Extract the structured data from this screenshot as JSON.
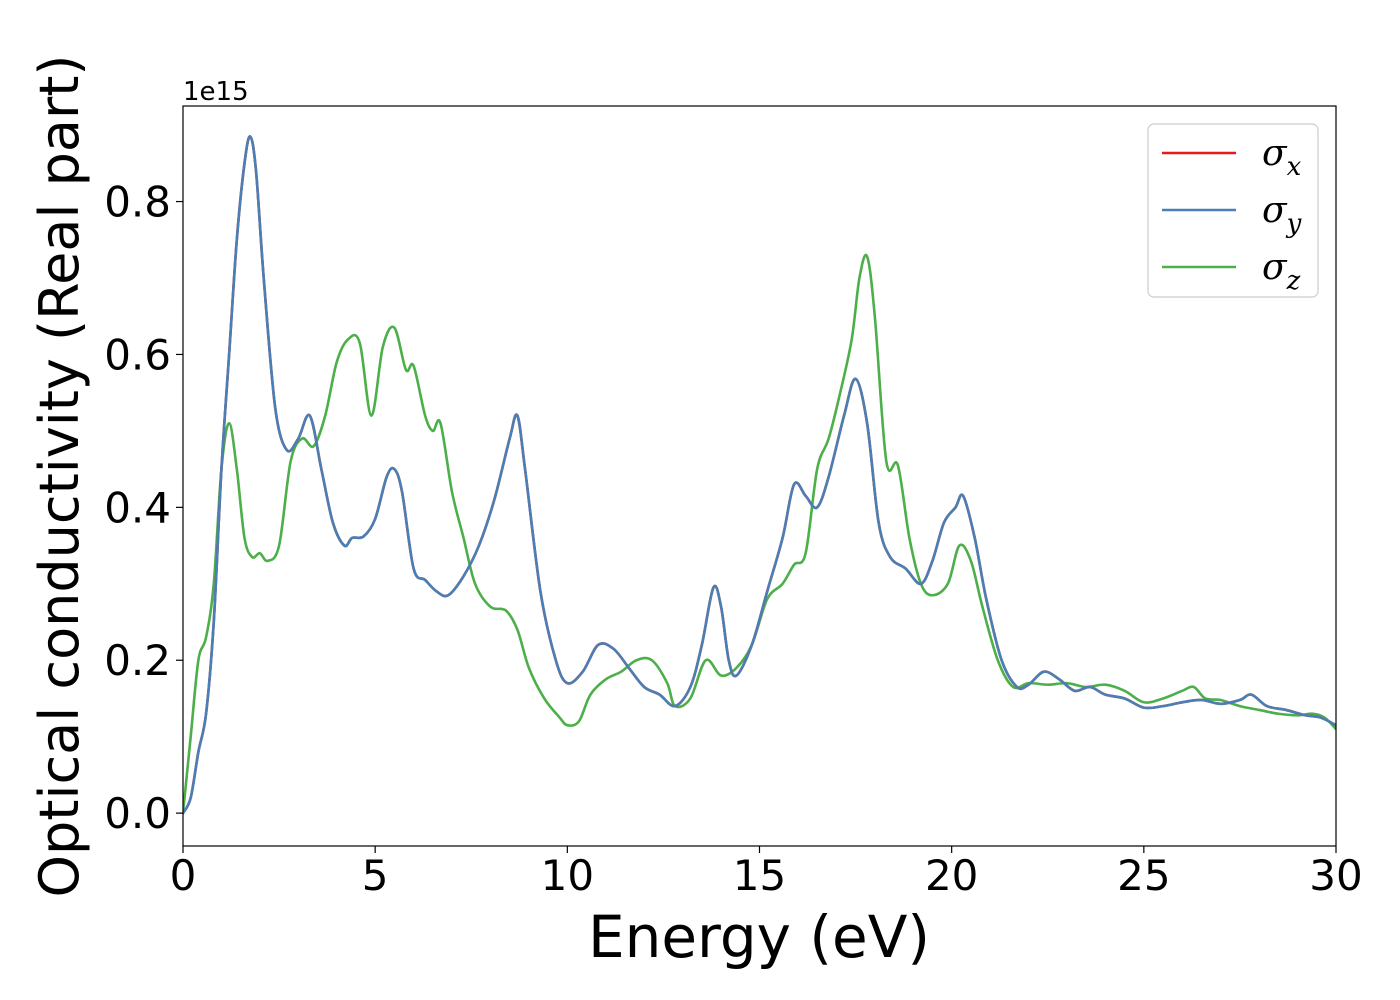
{
  "chart_data": {
    "type": "line",
    "title": "",
    "xlabel": "Energy (eV)",
    "ylabel": "Optical conductivity (Real part)",
    "y_offset_text": "1e15",
    "xlim": [
      0,
      30
    ],
    "ylim": [
      -0.043,
      0.925
    ],
    "xticks": [
      0,
      5,
      10,
      15,
      20,
      25,
      30
    ],
    "xtick_labels": [
      "0",
      "5",
      "10",
      "15",
      "20",
      "25",
      "30"
    ],
    "yticks": [
      0.0,
      0.2,
      0.4,
      0.6,
      0.8
    ],
    "ytick_labels": [
      "0.0",
      "0.2",
      "0.4",
      "0.6",
      "0.8"
    ],
    "grid": false,
    "legend_position": "top-right",
    "series": [
      {
        "name": "σx",
        "symbol": "σ",
        "subscript": "x",
        "color": "#e41a1c",
        "x": [
          0,
          0.2,
          0.4,
          0.6,
          0.8,
          1.0,
          1.2,
          1.4,
          1.6,
          1.75,
          1.9,
          2.1,
          2.4,
          2.7,
          3.0,
          3.3,
          3.6,
          3.9,
          4.2,
          4.4,
          4.7,
          5.0,
          5.3,
          5.5,
          5.7,
          6.0,
          6.3,
          6.6,
          6.9,
          7.3,
          7.7,
          8.1,
          8.5,
          8.7,
          8.9,
          9.3,
          9.7,
          10.0,
          10.4,
          10.8,
          11.2,
          11.6,
          12.0,
          12.4,
          12.8,
          13.2,
          13.5,
          13.8,
          14.0,
          14.2,
          14.4,
          14.8,
          15.2,
          15.6,
          15.9,
          16.2,
          16.5,
          16.8,
          17.2,
          17.5,
          17.8,
          18.1,
          18.4,
          18.8,
          19.2,
          19.5,
          19.8,
          20.1,
          20.3,
          20.6,
          20.9,
          21.3,
          21.7,
          22.0,
          22.4,
          22.8,
          23.2,
          23.6,
          24.0,
          24.5,
          25.0,
          25.5,
          26.0,
          26.5,
          27.0,
          27.5,
          27.8,
          28.2,
          28.7,
          29.2,
          29.6,
          30.0
        ],
        "y": [
          0.0,
          0.02,
          0.08,
          0.13,
          0.25,
          0.45,
          0.6,
          0.75,
          0.85,
          0.885,
          0.84,
          0.7,
          0.53,
          0.475,
          0.49,
          0.52,
          0.45,
          0.38,
          0.35,
          0.36,
          0.362,
          0.385,
          0.44,
          0.45,
          0.42,
          0.32,
          0.305,
          0.29,
          0.285,
          0.31,
          0.35,
          0.41,
          0.49,
          0.52,
          0.45,
          0.29,
          0.2,
          0.17,
          0.185,
          0.22,
          0.215,
          0.19,
          0.165,
          0.155,
          0.14,
          0.165,
          0.22,
          0.295,
          0.27,
          0.2,
          0.18,
          0.22,
          0.29,
          0.36,
          0.43,
          0.415,
          0.4,
          0.44,
          0.52,
          0.568,
          0.51,
          0.38,
          0.335,
          0.32,
          0.3,
          0.33,
          0.38,
          0.4,
          0.415,
          0.36,
          0.28,
          0.2,
          0.165,
          0.168,
          0.185,
          0.175,
          0.16,
          0.165,
          0.155,
          0.15,
          0.138,
          0.14,
          0.145,
          0.148,
          0.143,
          0.148,
          0.155,
          0.14,
          0.135,
          0.128,
          0.125,
          0.115
        ]
      },
      {
        "name": "σy",
        "symbol": "σ",
        "subscript": "y",
        "color": "#4a7fb5",
        "x": [
          0,
          0.2,
          0.4,
          0.6,
          0.8,
          1.0,
          1.2,
          1.4,
          1.6,
          1.75,
          1.9,
          2.1,
          2.4,
          2.7,
          3.0,
          3.3,
          3.6,
          3.9,
          4.2,
          4.4,
          4.7,
          5.0,
          5.3,
          5.5,
          5.7,
          6.0,
          6.3,
          6.6,
          6.9,
          7.3,
          7.7,
          8.1,
          8.5,
          8.7,
          8.9,
          9.3,
          9.7,
          10.0,
          10.4,
          10.8,
          11.2,
          11.6,
          12.0,
          12.4,
          12.8,
          13.2,
          13.5,
          13.8,
          14.0,
          14.2,
          14.4,
          14.8,
          15.2,
          15.6,
          15.9,
          16.2,
          16.5,
          16.8,
          17.2,
          17.5,
          17.8,
          18.1,
          18.4,
          18.8,
          19.2,
          19.5,
          19.8,
          20.1,
          20.3,
          20.6,
          20.9,
          21.3,
          21.7,
          22.0,
          22.4,
          22.8,
          23.2,
          23.6,
          24.0,
          24.5,
          25.0,
          25.5,
          26.0,
          26.5,
          27.0,
          27.5,
          27.8,
          28.2,
          28.7,
          29.2,
          29.6,
          30.0
        ],
        "y": [
          0.0,
          0.02,
          0.08,
          0.13,
          0.25,
          0.45,
          0.6,
          0.75,
          0.85,
          0.885,
          0.84,
          0.7,
          0.53,
          0.475,
          0.49,
          0.52,
          0.45,
          0.38,
          0.35,
          0.36,
          0.362,
          0.385,
          0.44,
          0.45,
          0.42,
          0.32,
          0.305,
          0.29,
          0.285,
          0.31,
          0.35,
          0.41,
          0.49,
          0.52,
          0.45,
          0.29,
          0.2,
          0.17,
          0.185,
          0.22,
          0.215,
          0.19,
          0.165,
          0.155,
          0.14,
          0.165,
          0.22,
          0.295,
          0.27,
          0.2,
          0.18,
          0.22,
          0.29,
          0.36,
          0.43,
          0.415,
          0.4,
          0.44,
          0.52,
          0.568,
          0.51,
          0.38,
          0.335,
          0.32,
          0.3,
          0.33,
          0.38,
          0.4,
          0.415,
          0.36,
          0.28,
          0.2,
          0.165,
          0.168,
          0.185,
          0.175,
          0.16,
          0.165,
          0.155,
          0.15,
          0.138,
          0.14,
          0.145,
          0.148,
          0.143,
          0.148,
          0.155,
          0.14,
          0.135,
          0.128,
          0.125,
          0.115
        ]
      },
      {
        "name": "σz",
        "symbol": "σ",
        "subscript": "z",
        "color": "#4daf4a",
        "x": [
          0,
          0.2,
          0.4,
          0.6,
          0.8,
          1.0,
          1.2,
          1.4,
          1.6,
          1.8,
          2.0,
          2.2,
          2.5,
          2.8,
          3.1,
          3.4,
          3.7,
          4.0,
          4.3,
          4.6,
          4.9,
          5.2,
          5.5,
          5.8,
          6.0,
          6.3,
          6.5,
          6.7,
          7.0,
          7.3,
          7.6,
          8.0,
          8.4,
          8.7,
          9.0,
          9.4,
          9.8,
          10.0,
          10.3,
          10.6,
          11.0,
          11.4,
          11.8,
          12.2,
          12.6,
          12.8,
          13.2,
          13.6,
          14.0,
          14.4,
          14.8,
          15.2,
          15.6,
          15.9,
          16.2,
          16.5,
          16.8,
          17.1,
          17.4,
          17.6,
          17.8,
          18.0,
          18.3,
          18.6,
          18.9,
          19.2,
          19.5,
          19.9,
          20.2,
          20.5,
          20.8,
          21.2,
          21.6,
          22.0,
          22.5,
          23.0,
          23.5,
          24.0,
          24.5,
          25.0,
          25.5,
          26.0,
          26.3,
          26.6,
          27.0,
          27.5,
          28.0,
          28.5,
          29.0,
          29.4,
          29.7,
          30.0
        ],
        "y": [
          0.0,
          0.1,
          0.2,
          0.23,
          0.3,
          0.45,
          0.51,
          0.45,
          0.36,
          0.335,
          0.34,
          0.33,
          0.35,
          0.46,
          0.49,
          0.48,
          0.52,
          0.59,
          0.62,
          0.615,
          0.52,
          0.61,
          0.635,
          0.58,
          0.585,
          0.52,
          0.5,
          0.51,
          0.42,
          0.36,
          0.3,
          0.27,
          0.265,
          0.24,
          0.19,
          0.15,
          0.125,
          0.115,
          0.12,
          0.155,
          0.175,
          0.185,
          0.2,
          0.2,
          0.17,
          0.14,
          0.15,
          0.2,
          0.18,
          0.19,
          0.22,
          0.28,
          0.3,
          0.325,
          0.34,
          0.45,
          0.49,
          0.55,
          0.62,
          0.7,
          0.728,
          0.65,
          0.46,
          0.455,
          0.36,
          0.3,
          0.285,
          0.3,
          0.35,
          0.33,
          0.27,
          0.2,
          0.165,
          0.17,
          0.168,
          0.17,
          0.165,
          0.168,
          0.16,
          0.145,
          0.15,
          0.16,
          0.165,
          0.15,
          0.148,
          0.14,
          0.135,
          0.13,
          0.128,
          0.13,
          0.125,
          0.11
        ]
      }
    ]
  }
}
